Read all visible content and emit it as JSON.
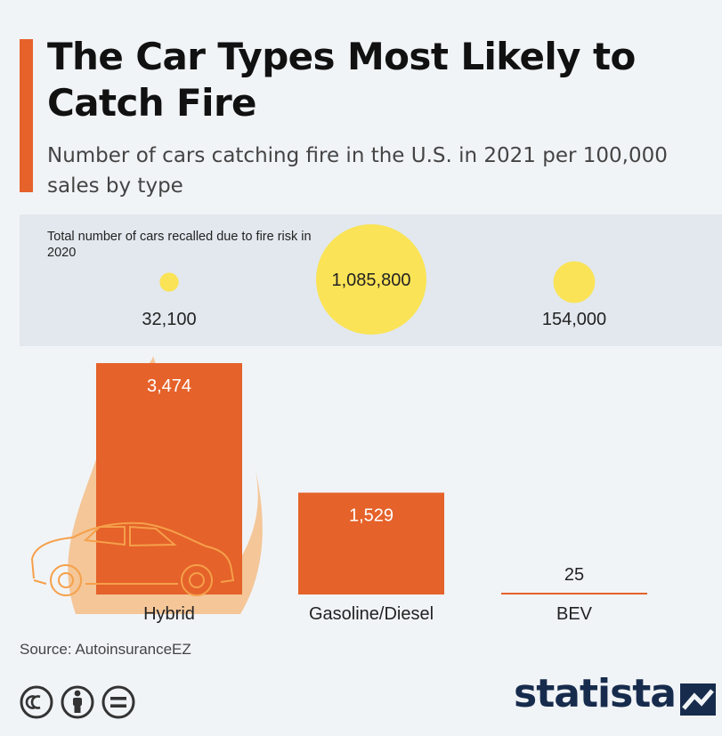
{
  "colors": {
    "accent": "#e5622a",
    "bar": "#e5622a",
    "bubble": "#fae356",
    "flame": "#f5a04a",
    "brand": "#172c4d"
  },
  "header": {
    "title": "The Car Types Most Likely to Catch Fire",
    "subtitle": "Number of cars catching fire in the U.S. in 2021 per 100,000 sales by type"
  },
  "recalls": {
    "label": "Total number of cars recalled due to fire risk in 2020"
  },
  "chart_data": {
    "type": "bar",
    "title": "The Car Types Most Likely to Catch Fire",
    "subtitle": "Number of cars catching fire in the U.S. in 2021 per 100,000 sales by type",
    "categories": [
      "Hybrid",
      "Gasoline/Diesel",
      "BEV"
    ],
    "values": [
      3474,
      1529,
      25
    ],
    "value_labels": [
      "3,474",
      "1,529",
      "25"
    ],
    "ylim": [
      0,
      3474
    ],
    "xlabel": "",
    "ylabel": "",
    "bubble_series": {
      "name": "Total number of cars recalled due to fire risk in 2020",
      "values": [
        32100,
        1085800,
        154000
      ],
      "value_labels": [
        "32,100",
        "1,085,800",
        "154,000"
      ]
    }
  },
  "footer": {
    "source": "Source: AutoinsuranceEZ",
    "brand": "statista",
    "license_icons": [
      "creative-commons-icon",
      "attribution-icon",
      "no-derivatives-icon"
    ]
  }
}
